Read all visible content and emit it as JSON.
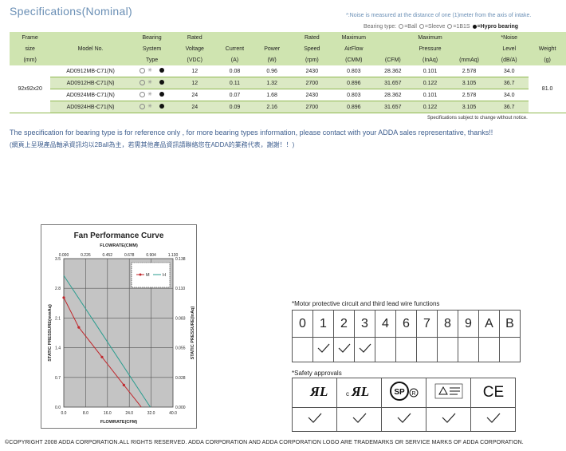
{
  "page_title": "Specifications(Nominal)",
  "noise_note": "*:Noise is measured at the distance of one (1)meter from the axis of intake.",
  "bearing_legend": {
    "prefix": "Bearing type:",
    "text": "=Ball",
    "sleeve": "=Sleeve",
    "b1s": "=1B1S",
    "hypro": "=Hypro bearing"
  },
  "spec_table": {
    "headers_row1": [
      "Frame",
      "",
      "Bearing",
      "Rated",
      "",
      "",
      "Rated",
      "Maximum",
      "",
      "Maximum",
      "",
      "*Noise",
      ""
    ],
    "headers_row2": [
      "size",
      "Model No.",
      "System",
      "Voltage",
      "Current",
      "Power",
      "Speed",
      "AirFlow",
      "",
      "Pressure",
      "",
      "Level",
      "Weight"
    ],
    "headers_row3": [
      "(mm)",
      "",
      "Type",
      "(VDC)",
      "(A)",
      "(W)",
      "(rpm)",
      "(CMM)",
      "(CFM)",
      "(InAq)",
      "(mmAq)",
      "(dB/A)",
      "(g)"
    ],
    "frame_size": "92x92x20",
    "weight": "81.0",
    "rows": [
      {
        "model": "AD0912MB-C71(N)",
        "voltage": "12",
        "current": "0.08",
        "power": "0.96",
        "speed": "2430",
        "cmm": "0.803",
        "cfm": "28.362",
        "inaq": "0.101",
        "mmaq": "2.578",
        "noise": "34.0"
      },
      {
        "model": "AD0912HB-C71(N)",
        "voltage": "12",
        "current": "0.11",
        "power": "1.32",
        "speed": "2700",
        "cmm": "0.896",
        "cfm": "31.657",
        "inaq": "0.122",
        "mmaq": "3.105",
        "noise": "36.7"
      },
      {
        "model": "AD0924MB-C71(N)",
        "voltage": "24",
        "current": "0.07",
        "power": "1.68",
        "speed": "2430",
        "cmm": "0.803",
        "cfm": "28.362",
        "inaq": "0.101",
        "mmaq": "2.578",
        "noise": "34.0"
      },
      {
        "model": "AD0924HB-C71(N)",
        "voltage": "24",
        "current": "0.09",
        "power": "2.16",
        "speed": "2700",
        "cmm": "0.896",
        "cfm": "31.657",
        "inaq": "0.122",
        "mmaq": "3.105",
        "noise": "36.7"
      }
    ]
  },
  "subject_note": "Specifications subject to change without notice.",
  "disclaimer_en": "The specification for bearing type is for reference only , for more bearing types information, please contact with your ADDA sales representative, thanks!!",
  "disclaimer_zh": "(網頁上呈現產品軸承資訊均以2Ball為主，若需其他產品資訊請聯絡您在ADDA的業務代表，謝謝！！)",
  "chart_data": {
    "type": "line",
    "title": "Fan Performance Curve",
    "xlabel_top": "FLOWRATE(CMM)",
    "xlabel": "FLOWRATE(CFM)",
    "ylabel": "STATIC PRESSURE(mmAq)",
    "ylabel_right": "STATIC PRESSURE(InAq)",
    "xlim": [
      0,
      40
    ],
    "ylim": [
      0,
      3.5
    ],
    "x_ticks": [
      "0.0",
      "8.0",
      "16.0",
      "24.0",
      "32.0",
      "40.0"
    ],
    "x_top_ticks": [
      "0.000",
      "0.226",
      "0.452",
      "0.678",
      "0.904",
      "1.130"
    ],
    "y_ticks": [
      "0.0",
      "0.7",
      "1.4",
      "2.1",
      "2.8",
      "3.5"
    ],
    "y_right_ticks": [
      "0.000",
      "0.028",
      "0.055",
      "0.083",
      "0.110",
      "0.138"
    ],
    "grid": true,
    "legend_placement": "top-right",
    "series": [
      {
        "name": "M",
        "color": "#c0282d",
        "marker": true,
        "x": [
          0,
          5.5,
          14,
          22,
          28.4
        ],
        "y": [
          2.58,
          1.88,
          1.18,
          0.52,
          0
        ]
      },
      {
        "name": "H",
        "color": "#2a9d8f",
        "marker": false,
        "x": [
          0,
          31.7
        ],
        "y": [
          3.1,
          0
        ]
      }
    ]
  },
  "motor": {
    "title": "*Motor protective circuit and third lead wire functions",
    "codes": [
      "0",
      "1",
      "2",
      "3",
      "4",
      "6",
      "7",
      "8",
      "9",
      "A",
      "B"
    ],
    "checked": [
      false,
      true,
      true,
      true,
      false,
      false,
      false,
      false,
      false,
      false,
      false
    ]
  },
  "safety": {
    "title": "*Safety approvals",
    "marks": [
      "UL",
      "cUL",
      "CSA",
      "TUV",
      "CE"
    ],
    "checked": [
      true,
      true,
      true,
      true,
      true
    ]
  },
  "footer": "©COPYRIGHT 2008 ADDA CORPORATION.ALL RIGHTS RESERVED. ADDA CORPORATION AND ADDA CORPORATION LOGO ARE TRADEMARKS OR SERVICE MARKS OF ADDA CORPORATION."
}
